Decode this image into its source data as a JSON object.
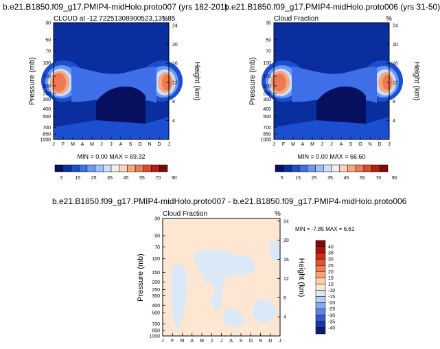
{
  "chart_data": [
    {
      "type": "heatmap",
      "title": "b.e21.B1850.f09_g17.PMIP4-midHolo.proto007 (yrs 182-201)",
      "subtitle_left": "CLOUD at -12.72251308900523,131.85",
      "subtitle_right": "%",
      "ylabel": "Pressure (mb)",
      "y2label": "Height (km)",
      "x_ticks": [
        "J",
        "F",
        "M",
        "A",
        "M",
        "J",
        "J",
        "A",
        "S",
        "O",
        "N",
        "D",
        "J"
      ],
      "y_ticks": [
        "30",
        "50",
        "70",
        "100",
        "150",
        "200",
        "250",
        "300",
        "400",
        "500",
        "700",
        "850",
        "1000"
      ],
      "y2_ticks": [
        "24",
        "20",
        "16",
        "12",
        "8",
        "4"
      ],
      "stats": "MIN =    0.00 MAX =  69.32",
      "min": 0.0,
      "max": 69.32,
      "colorbar_labels": [
        "5",
        "15",
        "25",
        "35",
        "45",
        "55",
        "70",
        "90"
      ]
    },
    {
      "type": "heatmap",
      "title": "b.e21.B1850.f09_g17.PMIP4-midHolo.proto006 (yrs 31-50)",
      "subtitle_left": "Cloud Fraction",
      "subtitle_right": "%",
      "ylabel": "Pressure (mb)",
      "y2label": "Height (km)",
      "x_ticks": [
        "J",
        "F",
        "M",
        "A",
        "M",
        "J",
        "J",
        "A",
        "S",
        "O",
        "N",
        "D",
        "J"
      ],
      "y_ticks": [
        "30",
        "50",
        "70",
        "100",
        "150",
        "200",
        "250",
        "300",
        "400",
        "500",
        "700",
        "850",
        "1000"
      ],
      "y2_ticks": [
        "24",
        "20",
        "16",
        "12",
        "8",
        "4"
      ],
      "stats": "MIN =    0.00 MAX =  66.60",
      "min": 0.0,
      "max": 66.6,
      "colorbar_labels": [
        "5",
        "15",
        "25",
        "35",
        "45",
        "55",
        "70",
        "90"
      ]
    },
    {
      "type": "heatmap",
      "title": "b.e21.B1850.f09_g17.PMIP4-midHolo.proto007 - b.e21.B1850.f09_g17.PMIP4-midHolo.proto006",
      "subtitle_left": "Cloud Fraction",
      "subtitle_right": "%",
      "ylabel": "Pressure (mb)",
      "y2label": "Height (km)",
      "x_ticks": [
        "J",
        "F",
        "M",
        "A",
        "M",
        "J",
        "J",
        "A",
        "S",
        "O",
        "N",
        "D",
        "J"
      ],
      "y_ticks": [
        "30",
        "50",
        "70",
        "100",
        "150",
        "200",
        "250",
        "300",
        "400",
        "500",
        "700",
        "850",
        "1000"
      ],
      "y2_ticks": [
        "24",
        "20",
        "16",
        "12",
        "8",
        "4"
      ],
      "stats": "MIN =  -7.85 MAX =    6.61",
      "min": -7.85,
      "max": 6.61,
      "colorbar_labels": [
        "40",
        "35",
        "30",
        "25",
        "20",
        "15",
        "10",
        "-10",
        "-15",
        "-20",
        "-25",
        "-30",
        "-35",
        "-40"
      ]
    }
  ],
  "colors": {
    "abs_scale": [
      "#07105e",
      "#0a2e9e",
      "#1b4fd1",
      "#3e6fe8",
      "#6d98f2",
      "#9dbff7",
      "#cadff9",
      "#f3eee9",
      "#fbd3bb",
      "#f6a77f",
      "#ee7a53",
      "#db4a2c",
      "#b71e12",
      "#7b0a08"
    ],
    "diff_scale": [
      "#7b0a08",
      "#a9140d",
      "#cc2f1d",
      "#e5532f",
      "#f27b4d",
      "#f7a477",
      "#fbcfaa",
      "#fde7d2",
      "#dbe8f8",
      "#b4cff3",
      "#86aaeb",
      "#5a84e0",
      "#3559c8",
      "#1836a4",
      "#0a1d78"
    ]
  }
}
